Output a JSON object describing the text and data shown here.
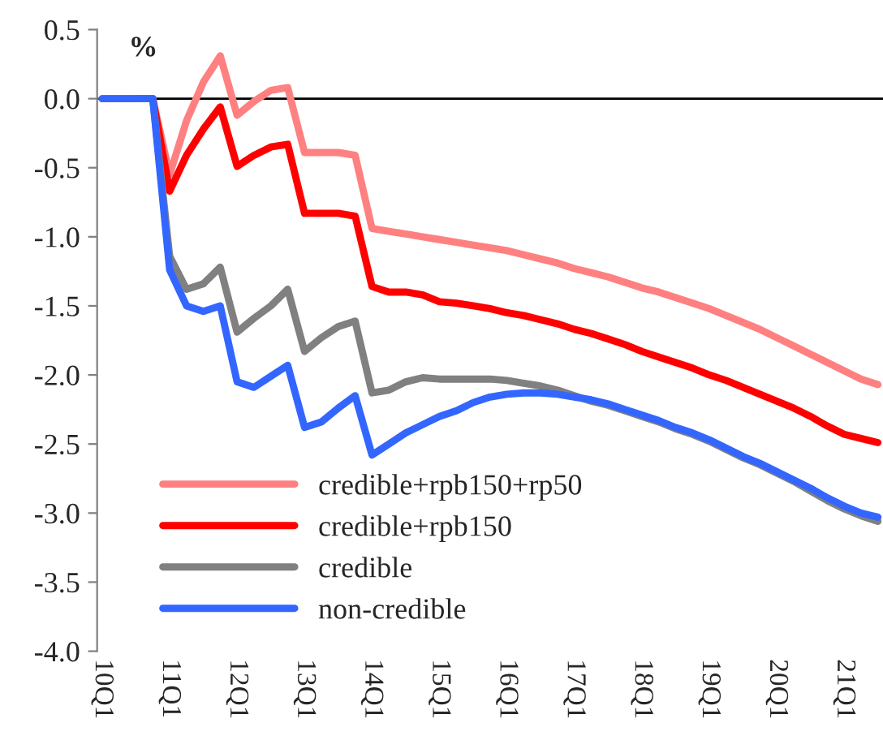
{
  "chart_data": {
    "type": "line",
    "ylabel": "%",
    "categories": [
      "10Q1",
      null,
      null,
      null,
      "11Q1",
      null,
      null,
      null,
      "12Q1",
      null,
      null,
      null,
      "13Q1",
      null,
      null,
      null,
      "14Q1",
      null,
      null,
      null,
      "15Q1",
      null,
      null,
      null,
      "16Q1",
      null,
      null,
      null,
      "17Q1",
      null,
      null,
      null,
      "18Q1",
      null,
      null,
      null,
      "19Q1",
      null,
      null,
      null,
      "20Q1",
      null,
      null,
      null,
      "21Q1",
      null,
      null
    ],
    "series": [
      {
        "name": "credible+rpb150+rp50",
        "color": "#ff8080",
        "values": [
          null,
          null,
          0,
          0,
          -0.55,
          -0.16,
          0.12,
          0.31,
          -0.12,
          -0.02,
          0.06,
          0.08,
          -0.39,
          -0.39,
          -0.39,
          -0.41,
          -0.94,
          -0.96,
          -0.98,
          -1.0,
          -1.02,
          -1.04,
          -1.06,
          -1.08,
          -1.1,
          -1.13,
          -1.16,
          -1.19,
          -1.23,
          -1.26,
          -1.29,
          -1.33,
          -1.37,
          -1.4,
          -1.44,
          -1.48,
          -1.52,
          -1.57,
          -1.62,
          -1.67,
          -1.73,
          -1.79,
          -1.85,
          -1.91,
          -1.97,
          -2.03,
          -2.07
        ]
      },
      {
        "name": "credible+rpb150",
        "color": "#ff0000",
        "values": [
          null,
          null,
          0,
          0,
          -0.67,
          -0.41,
          -0.22,
          -0.06,
          -0.49,
          -0.41,
          -0.35,
          -0.33,
          -0.83,
          -0.83,
          -0.83,
          -0.85,
          -1.36,
          -1.4,
          -1.4,
          -1.42,
          -1.47,
          -1.48,
          -1.5,
          -1.52,
          -1.55,
          -1.57,
          -1.6,
          -1.63,
          -1.67,
          -1.7,
          -1.74,
          -1.78,
          -1.83,
          -1.87,
          -1.91,
          -1.95,
          -2.0,
          -2.04,
          -2.09,
          -2.14,
          -2.19,
          -2.24,
          -2.3,
          -2.37,
          -2.43,
          -2.46,
          -2.49
        ]
      },
      {
        "name": "credible",
        "color": "#808080",
        "values": [
          0,
          0,
          0,
          0,
          -1.14,
          -1.38,
          -1.34,
          -1.22,
          -1.69,
          -1.59,
          -1.5,
          -1.38,
          -1.83,
          -1.73,
          -1.65,
          -1.61,
          -2.13,
          -2.11,
          -2.05,
          -2.02,
          -2.03,
          -2.03,
          -2.03,
          -2.03,
          -2.04,
          -2.06,
          -2.08,
          -2.11,
          -2.15,
          -2.19,
          -2.22,
          -2.26,
          -2.3,
          -2.34,
          -2.39,
          -2.43,
          -2.48,
          -2.54,
          -2.6,
          -2.65,
          -2.71,
          -2.77,
          -2.84,
          -2.91,
          -2.97,
          -3.02,
          -3.06
        ]
      },
      {
        "name": "non-credible",
        "color": "#3366ff",
        "values": [
          0,
          0,
          0,
          0,
          -1.24,
          -1.5,
          -1.54,
          -1.5,
          -2.05,
          -2.09,
          -2.01,
          -1.93,
          -2.38,
          -2.34,
          -2.24,
          -2.15,
          -2.58,
          -2.5,
          -2.42,
          -2.36,
          -2.3,
          -2.26,
          -2.2,
          -2.16,
          -2.14,
          -2.13,
          -2.13,
          -2.14,
          -2.16,
          -2.18,
          -2.21,
          -2.25,
          -2.29,
          -2.33,
          -2.38,
          -2.42,
          -2.47,
          -2.53,
          -2.59,
          -2.64,
          -2.7,
          -2.76,
          -2.82,
          -2.89,
          -2.95,
          -3.0,
          -3.03
        ]
      }
    ],
    "ylim": [
      -4.0,
      0.5
    ],
    "yticks": [
      {
        "value": -4.0,
        "label": "-4.0"
      },
      {
        "value": -3.5,
        "label": "-3.5"
      },
      {
        "value": -3.0,
        "label": "-3.0"
      },
      {
        "value": -2.5,
        "label": "-2.5"
      },
      {
        "value": -2.0,
        "label": "-2.0"
      },
      {
        "value": -1.5,
        "label": "-1.5"
      },
      {
        "value": -1.0,
        "label": "-1.0"
      },
      {
        "value": -0.5,
        "label": "-0.5"
      },
      {
        "value": 0.0,
        "label": "0.0"
      },
      {
        "value": 0.5,
        "label": "0.5"
      }
    ],
    "ref_lines": [
      {
        "axis": "y",
        "value": 0,
        "color": "#000000"
      }
    ],
    "grid": false,
    "legend": "bottom left",
    "line_style": "solid"
  }
}
